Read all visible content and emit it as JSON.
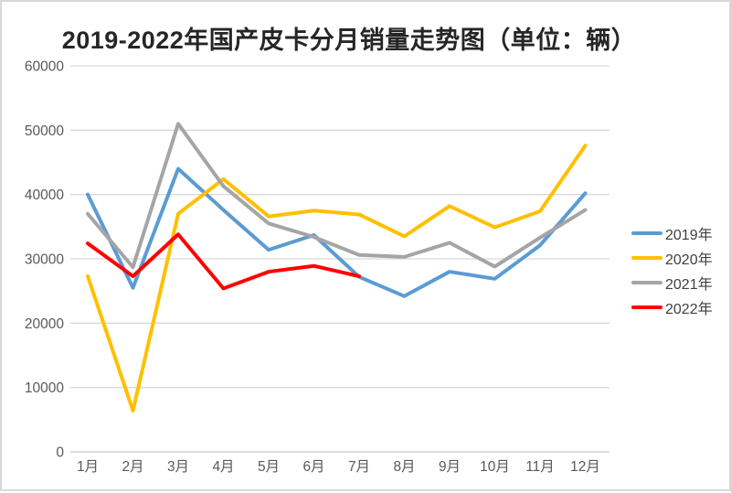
{
  "title": "2019-2022年国产皮卡分月销量走势图（单位：辆）",
  "chart_data": {
    "type": "line",
    "categories": [
      "1月",
      "2月",
      "3月",
      "4月",
      "5月",
      "6月",
      "7月",
      "8月",
      "9月",
      "10月",
      "11月",
      "12月"
    ],
    "series": [
      {
        "name": "2019年",
        "color": "#5B9BD5",
        "values": [
          40000,
          25500,
          44000,
          37600,
          31400,
          33700,
          27200,
          24200,
          28000,
          26900,
          32100,
          40200
        ]
      },
      {
        "name": "2020年",
        "color": "#FFC000",
        "values": [
          27300,
          6400,
          37000,
          42400,
          36600,
          37500,
          36900,
          33500,
          38200,
          34900,
          37400,
          47600
        ]
      },
      {
        "name": "2021年",
        "color": "#A5A5A5",
        "values": [
          37000,
          28700,
          51000,
          41300,
          35500,
          33400,
          30600,
          30300,
          32500,
          28800,
          33300,
          37600
        ]
      },
      {
        "name": "2022年",
        "color": "#FF0000",
        "values": [
          32400,
          27300,
          33800,
          25400,
          28000,
          28900,
          27300
        ]
      }
    ],
    "ylim": [
      0,
      60000
    ],
    "y_ticks": [
      0,
      10000,
      20000,
      30000,
      40000,
      50000,
      60000
    ],
    "grid": true,
    "legend_position": "right",
    "line_width": 4
  },
  "style": {
    "gridline_color": "#D9D9D9",
    "axis_line_color": "#C6C6C6",
    "tick_label_color": "#595959",
    "title_color": "#262626",
    "legend_text_color": "#404040",
    "border_color": "#D9D9D9",
    "background": "#FFFFFF"
  }
}
